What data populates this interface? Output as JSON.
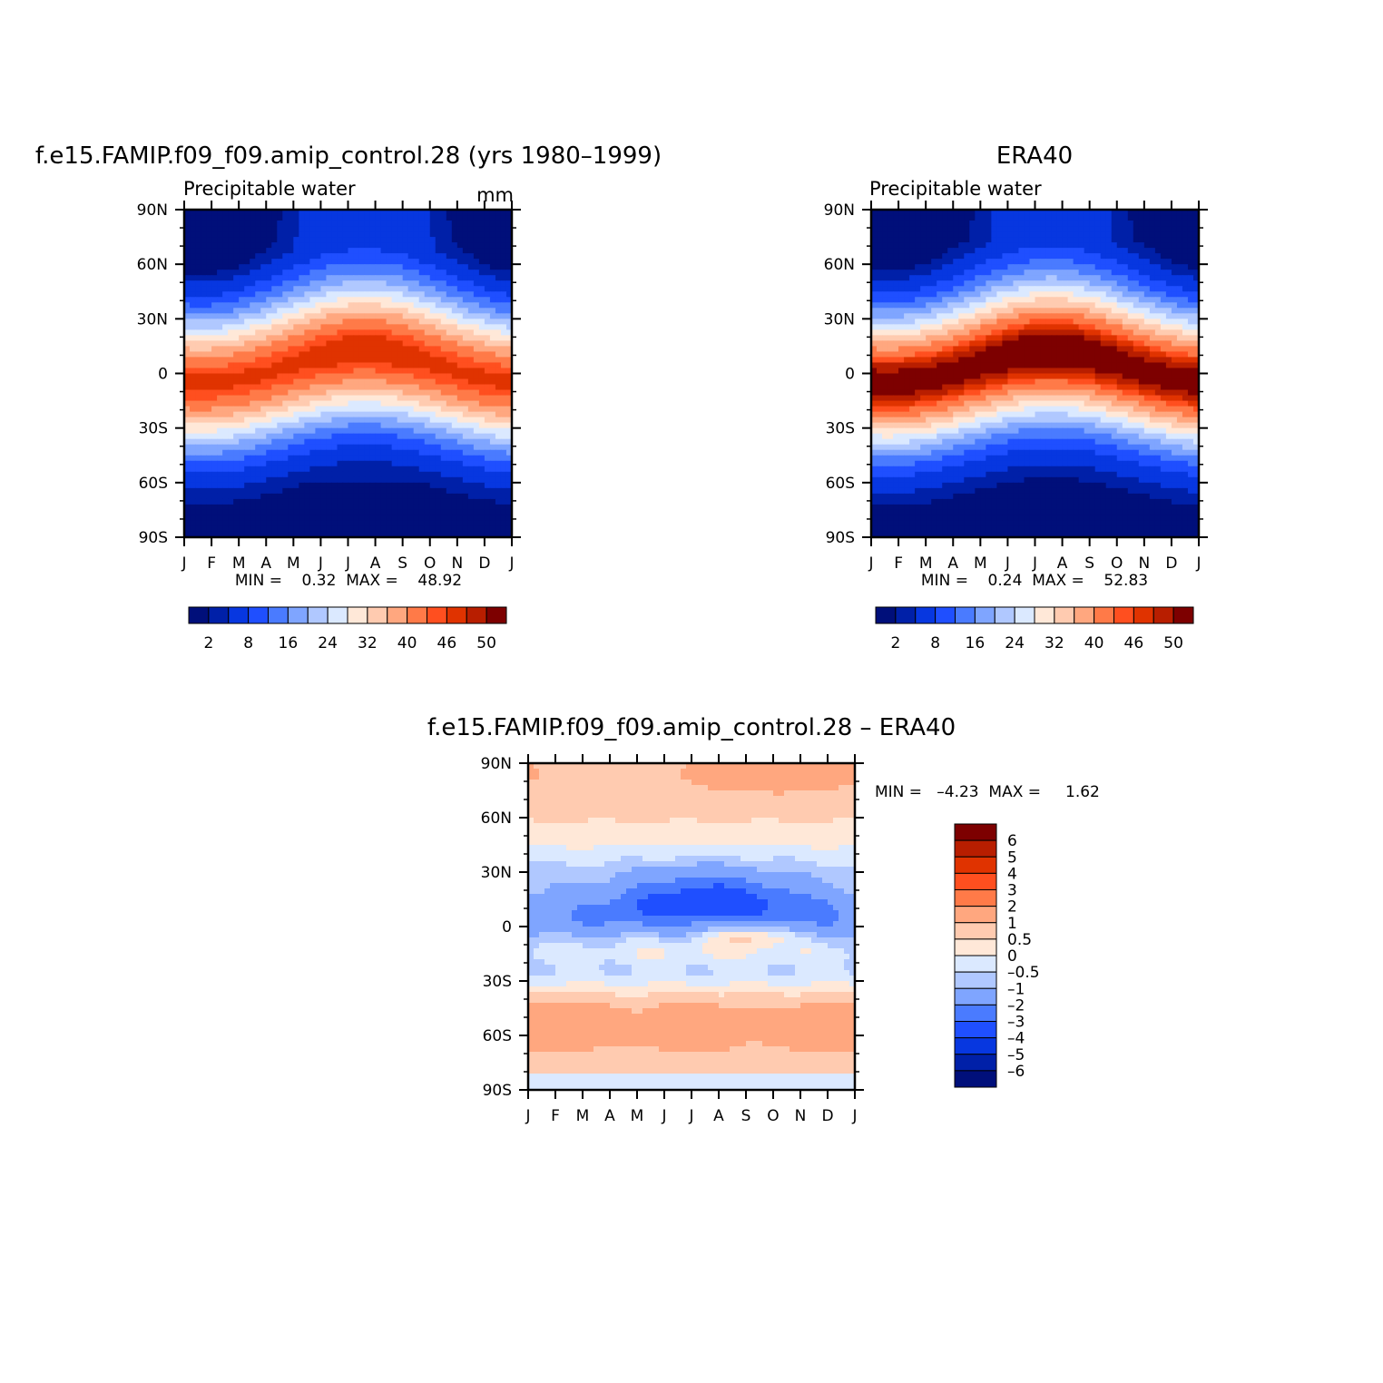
{
  "palette": {
    "abs": [
      "#000f7a",
      "#0020a8",
      "#0737e0",
      "#1f4fff",
      "#4a7bff",
      "#7fa5ff",
      "#b0c8ff",
      "#dbe9ff",
      "#ffe8d8",
      "#ffcbb0",
      "#ffa77f",
      "#ff7a48",
      "#ff4f1f",
      "#e03300",
      "#b81e00",
      "#7d0000"
    ],
    "diff": [
      "#000f7a",
      "#0020a8",
      "#0737e0",
      "#1f4fff",
      "#4a7bff",
      "#7fa5ff",
      "#b0c8ff",
      "#dbe9ff",
      "#ffe8d8",
      "#ffcbb0",
      "#ffa77f",
      "#ff7a48",
      "#ff4f1f",
      "#e03300",
      "#b81e00",
      "#7d0000"
    ]
  },
  "chart_data": [
    {
      "type": "heatmap",
      "title": "f.e15.FAMIP.f09_f09.amip_control.28 (yrs 1980–1999)",
      "subtitle_left": "Precipitable water",
      "subtitle_right": "mm",
      "x_tick_labels": [
        "J",
        "F",
        "M",
        "A",
        "M",
        "J",
        "J",
        "A",
        "S",
        "O",
        "N",
        "D",
        "J"
      ],
      "y_tick_labels": [
        "90N",
        "60N",
        "30N",
        "0",
        "30S",
        "60S",
        "90S"
      ],
      "ylim": [
        -90,
        90
      ],
      "min_max_text": "MIN =    0.32  MAX =    48.92",
      "min": 0.32,
      "max": 48.92,
      "legend_labels": [
        "2",
        "8",
        "16",
        "24",
        "32",
        "40",
        "46",
        "50"
      ],
      "legend_levels": [
        2,
        4,
        8,
        12,
        16,
        20,
        24,
        28,
        32,
        36,
        40,
        44,
        46,
        48,
        50
      ],
      "field_params": {
        "peak": 46.5,
        "eq_lat": 3,
        "seasonal_shift": 8,
        "nh_amp": 6,
        "pole_n": 2.0,
        "pole_s": 0.6,
        "width": 22
      }
    },
    {
      "type": "heatmap",
      "title": "ERA40",
      "subtitle_left": "Precipitable water",
      "subtitle_right": "",
      "x_tick_labels": [
        "J",
        "F",
        "M",
        "A",
        "M",
        "J",
        "J",
        "A",
        "S",
        "O",
        "N",
        "D",
        "J"
      ],
      "y_tick_labels": [
        "90N",
        "60N",
        "30N",
        "0",
        "30S",
        "60S",
        "90S"
      ],
      "ylim": [
        -90,
        90
      ],
      "min_max_text": "MIN =    0.24  MAX =    52.83",
      "min": 0.24,
      "max": 52.83,
      "legend_labels": [
        "2",
        "8",
        "16",
        "24",
        "32",
        "40",
        "46",
        "50"
      ],
      "legend_levels": [
        2,
        4,
        8,
        12,
        16,
        20,
        24,
        28,
        32,
        36,
        40,
        44,
        46,
        48,
        50
      ],
      "field_params": {
        "peak": 51.5,
        "eq_lat": 3,
        "seasonal_shift": 8,
        "nh_amp": 6,
        "pole_n": 1.5,
        "pole_s": 0.4,
        "width": 22
      }
    },
    {
      "type": "heatmap",
      "title": "f.e15.FAMIP.f09_f09.amip_control.28 – ERA40",
      "x_tick_labels": [
        "J",
        "F",
        "M",
        "A",
        "M",
        "J",
        "J",
        "A",
        "S",
        "O",
        "N",
        "D",
        "J"
      ],
      "y_tick_labels": [
        "90N",
        "60N",
        "30N",
        "0",
        "30S",
        "60S",
        "90S"
      ],
      "ylim": [
        -90,
        90
      ],
      "min_max_text": "MIN =   –4.23  MAX =     1.62",
      "min": -4.23,
      "max": 1.62,
      "legend_labels": [
        "6",
        "5",
        "4",
        "3",
        "2",
        "1",
        "0.5",
        "0",
        "–0.5",
        "–1",
        "–2",
        "–3",
        "–4",
        "–5",
        "–6"
      ],
      "legend_levels": [
        -6,
        -5,
        -4,
        -3,
        -2,
        -1,
        -0.5,
        0,
        0.5,
        1,
        2,
        3,
        4,
        5,
        6
      ]
    }
  ]
}
